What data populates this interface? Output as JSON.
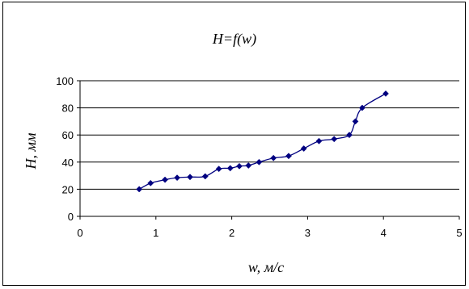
{
  "chart_data": {
    "type": "line",
    "title": "H=f(w)",
    "xlabel": "w, м/с",
    "ylabel": "H, мм",
    "xlim": [
      0,
      5
    ],
    "ylim": [
      0,
      100
    ],
    "x_ticks": [
      "0",
      "1",
      "2",
      "3",
      "4",
      "5"
    ],
    "y_ticks": [
      "0",
      "20",
      "40",
      "60",
      "80",
      "100"
    ],
    "grid": "horizontal",
    "legend": "none",
    "series": [
      {
        "color": "#000080",
        "marker": "diamond",
        "points": [
          [
            0.78,
            20
          ],
          [
            0.93,
            24.5
          ],
          [
            1.12,
            27
          ],
          [
            1.28,
            28.5
          ],
          [
            1.45,
            29
          ],
          [
            1.65,
            29.5
          ],
          [
            1.83,
            35
          ],
          [
            1.98,
            35.5
          ],
          [
            2.1,
            37
          ],
          [
            2.22,
            37.5
          ],
          [
            2.36,
            40
          ],
          [
            2.55,
            43
          ],
          [
            2.75,
            44.5
          ],
          [
            2.95,
            50
          ],
          [
            3.15,
            55.5
          ],
          [
            3.35,
            57
          ],
          [
            3.55,
            60
          ],
          [
            3.63,
            70
          ],
          [
            3.72,
            80
          ],
          [
            4.03,
            90.5
          ]
        ]
      }
    ]
  }
}
